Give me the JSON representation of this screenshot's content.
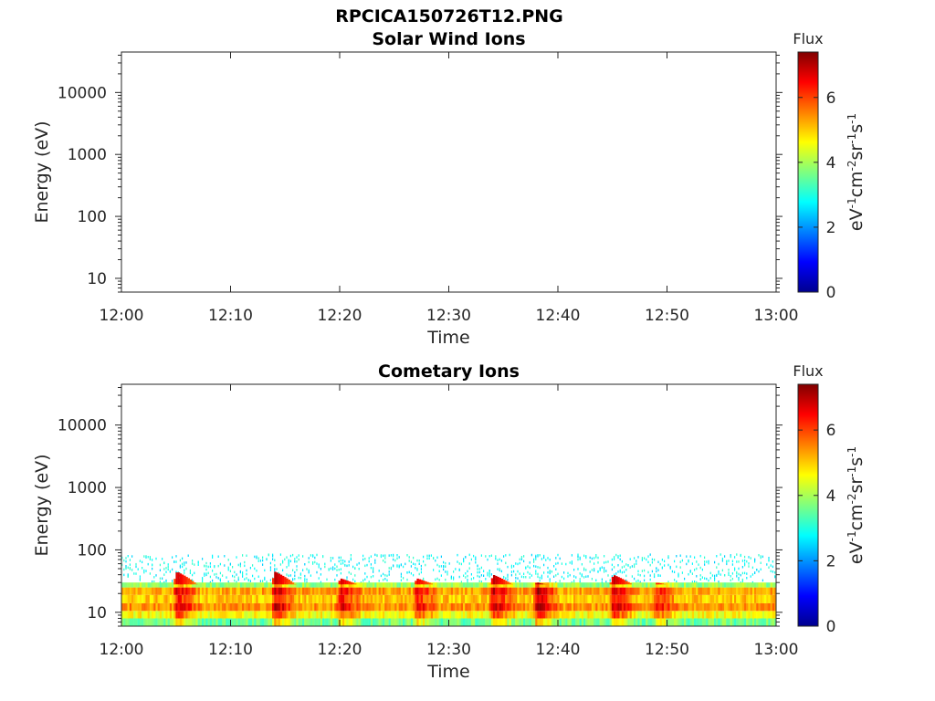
{
  "figure": {
    "filename": "RPCICA150726T12.PNG"
  },
  "chart_data": [
    {
      "type": "heatmap",
      "title": "Solar Wind Ions",
      "xlabel": "Time",
      "ylabel": "Energy (eV)",
      "x_ticks": [
        "12:00",
        "12:10",
        "12:20",
        "12:30",
        "12:40",
        "12:50",
        "13:00"
      ],
      "xlim": [
        "12:00",
        "13:00"
      ],
      "y_scale": "log",
      "y_ticks": [
        10,
        100,
        1000,
        10000
      ],
      "y_tick_labels": [
        "10",
        "100",
        "1000",
        "10000"
      ],
      "ylim": [
        6,
        45000
      ],
      "colorbar": {
        "title": "Flux",
        "label": "eV-1cm-2sr-1s-1",
        "ticks": [
          "0",
          "2",
          "4",
          "6"
        ],
        "range": [
          0,
          7.4
        ],
        "colormap": "jet"
      },
      "data": "no flux recorded (blank panel)"
    },
    {
      "type": "heatmap",
      "title": "Cometary Ions",
      "xlabel": "Time",
      "ylabel": "Energy (eV)",
      "x_ticks": [
        "12:00",
        "12:10",
        "12:20",
        "12:30",
        "12:40",
        "12:50",
        "13:00"
      ],
      "xlim": [
        "12:00",
        "13:00"
      ],
      "y_scale": "log",
      "y_ticks": [
        10,
        100,
        1000,
        10000
      ],
      "y_tick_labels": [
        "10",
        "100",
        "1000",
        "10000"
      ],
      "ylim": [
        6,
        45000
      ],
      "colorbar": {
        "title": "Flux",
        "label": "eV-1cm-2sr-1s-1",
        "ticks": [
          "0",
          "2",
          "4",
          "6"
        ],
        "range": [
          0,
          7.4
        ],
        "colormap": "jet"
      },
      "band": {
        "core_energy_ev": [
          10,
          25
        ],
        "core_flux": 5.2,
        "sparse_energy_ev": [
          30,
          85
        ],
        "sparse_flux": 2.8
      },
      "peaks": [
        {
          "time": "12:05",
          "peak_energy_ev": 45,
          "flux": 6.8
        },
        {
          "time": "12:14",
          "peak_energy_ev": 45,
          "flux": 7.0
        },
        {
          "time": "12:20",
          "peak_energy_ev": 35,
          "flux": 6.8
        },
        {
          "time": "12:27",
          "peak_energy_ev": 35,
          "flux": 6.6
        },
        {
          "time": "12:34",
          "peak_energy_ev": 40,
          "flux": 7.0
        },
        {
          "time": "12:38",
          "peak_energy_ev": 30,
          "flux": 7.3
        },
        {
          "time": "12:45",
          "peak_energy_ev": 40,
          "flux": 7.0
        },
        {
          "time": "12:49",
          "peak_energy_ev": 30,
          "flux": 6.4
        }
      ]
    }
  ]
}
